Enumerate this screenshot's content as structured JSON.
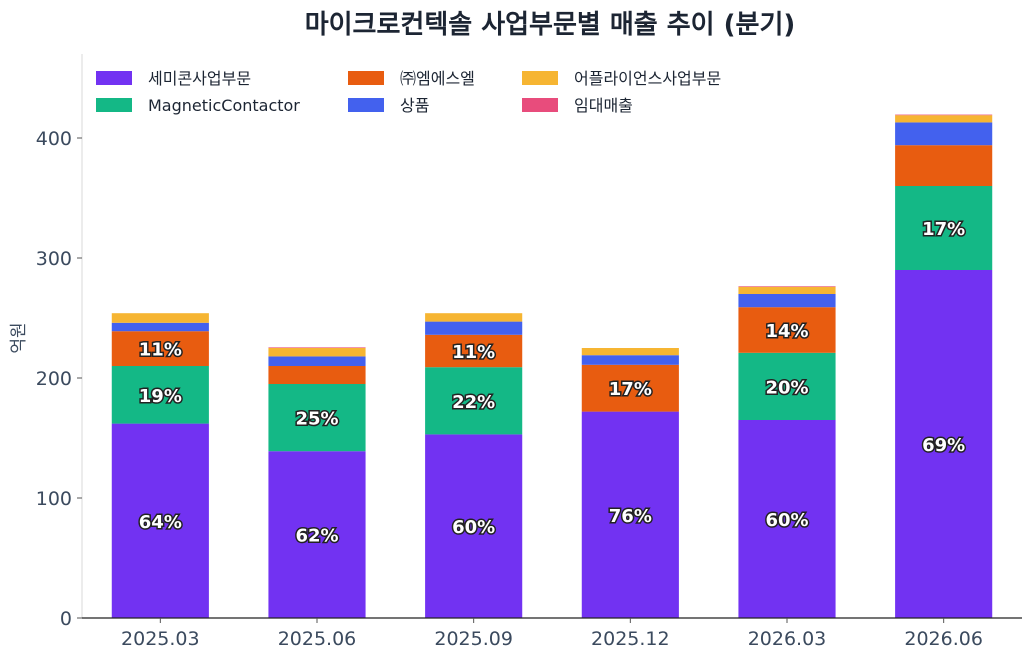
{
  "chart_data": {
    "type": "bar",
    "stacked": true,
    "title": "마이크로컨텍솔 사업부문별 매출 추이 (분기)",
    "xlabel": "",
    "ylabel": "억원",
    "ylim": [
      0,
      470
    ],
    "yticks": [
      0,
      100,
      200,
      300,
      400
    ],
    "grid": false,
    "legend_position": "top-left",
    "categories": [
      "2025.03",
      "2025.06",
      "2025.09",
      "2025.12",
      "2026.03",
      "2026.06"
    ],
    "series": [
      {
        "name": "세미콘사업부문",
        "color": "#7232f2",
        "values": [
          162,
          139,
          153,
          172,
          165,
          290
        ]
      },
      {
        "name": "MagneticContactor",
        "color": "#14b886",
        "values": [
          48,
          56,
          56,
          0,
          56,
          70
        ]
      },
      {
        "name": "㈜엠에스엘",
        "color": "#e85c10",
        "values": [
          29,
          15,
          27,
          39,
          38,
          34
        ]
      },
      {
        "name": "상품",
        "color": "#4361ee",
        "values": [
          7,
          8,
          11,
          8,
          11,
          19
        ]
      },
      {
        "name": "어플라이언스사업부문",
        "color": "#f6b532",
        "values": [
          8,
          7,
          7,
          6,
          6,
          6
        ]
      },
      {
        "name": "임대매출",
        "color": "#e84c7c",
        "values": [
          0,
          0.5,
          0,
          0,
          0.5,
          0.5
        ]
      }
    ],
    "percent_labels": [
      {
        "category": "2025.03",
        "series": "세미콘사업부문",
        "text": "64%"
      },
      {
        "category": "2025.03",
        "series": "MagneticContactor",
        "text": "19%"
      },
      {
        "category": "2025.03",
        "series": "㈜엠에스엘",
        "text": "11%"
      },
      {
        "category": "2025.06",
        "series": "세미콘사업부문",
        "text": "62%"
      },
      {
        "category": "2025.06",
        "series": "MagneticContactor",
        "text": "25%"
      },
      {
        "category": "2025.09",
        "series": "세미콘사업부문",
        "text": "60%"
      },
      {
        "category": "2025.09",
        "series": "MagneticContactor",
        "text": "22%"
      },
      {
        "category": "2025.09",
        "series": "㈜엠에스엘",
        "text": "11%"
      },
      {
        "category": "2025.12",
        "series": "세미콘사업부문",
        "text": "76%"
      },
      {
        "category": "2025.12",
        "series": "㈜엠에스엘",
        "text": "17%"
      },
      {
        "category": "2026.03",
        "series": "세미콘사업부문",
        "text": "60%"
      },
      {
        "category": "2026.03",
        "series": "MagneticContactor",
        "text": "20%"
      },
      {
        "category": "2026.03",
        "series": "㈜엠에스엘",
        "text": "14%"
      },
      {
        "category": "2026.06",
        "series": "세미콘사업부문",
        "text": "69%"
      },
      {
        "category": "2026.06",
        "series": "MagneticContactor",
        "text": "17%"
      }
    ]
  }
}
